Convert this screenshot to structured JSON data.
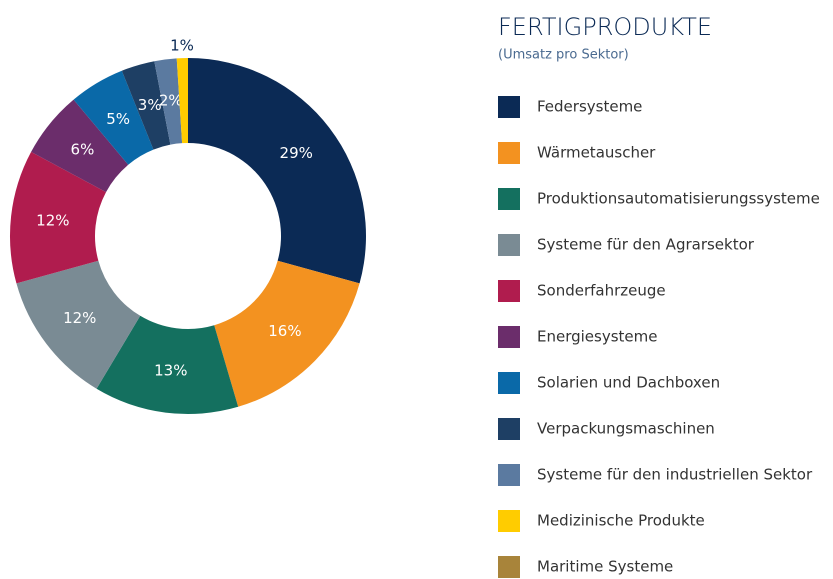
{
  "chart_data": {
    "type": "donut",
    "title": "FERTIGPRODUKTE",
    "subtitle": "(Umsatz pro Sektor)",
    "categories": [
      "Federsysteme",
      "Wärmetauscher",
      "Produktionsautomatisierungssysteme",
      "Systeme für den Agrarsektor",
      "Sonderfahrzeuge",
      "Energiesysteme",
      "Solarien und Dachboxen",
      "Verpackungsmaschinen",
      "Systeme für den industriellen Sektor",
      "Medizinische Produkte",
      "Maritime Systeme"
    ],
    "values": [
      29,
      16,
      13,
      12,
      12,
      6,
      5,
      3,
      2,
      1,
      null
    ],
    "value_labels": [
      "29%",
      "16%",
      "13%",
      "12%",
      "12%",
      "6%",
      "5%",
      "3%",
      "2%",
      "1%",
      null
    ],
    "colors": [
      "#0b2a55",
      "#f39220",
      "#14705f",
      "#7a8b94",
      "#b01c4e",
      "#6b2d6b",
      "#0a69a8",
      "#1e3f64",
      "#5b7aa0",
      "#ffcc00",
      "#a8843a"
    ]
  }
}
